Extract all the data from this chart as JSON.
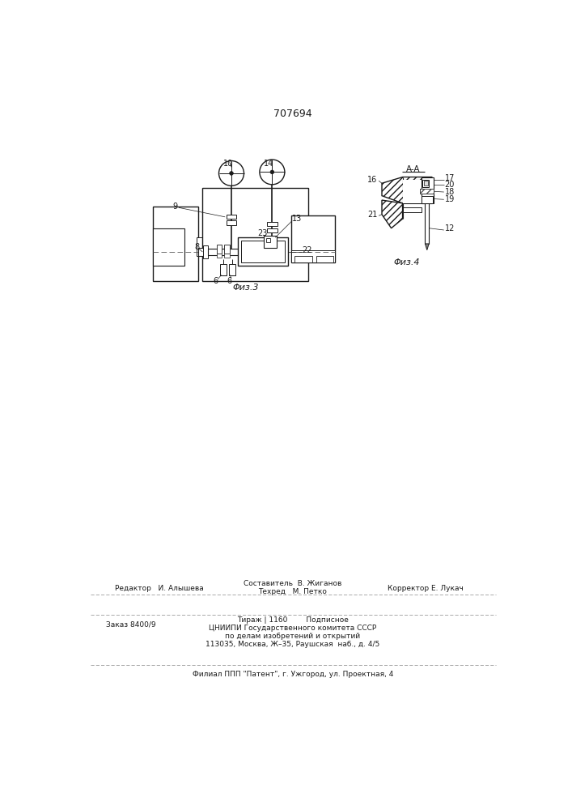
{
  "patent_number": "707694",
  "fig3_label": "Φиз.3",
  "fig4_label": "Φиз.4",
  "section_label": "A-A",
  "bg_color": "#f0ede8",
  "line_color": "#1a1a1a",
  "footer_line1_left": "Редактор   И. Алышева",
  "footer_line1_center_top": "Составитель  В. Жиганов",
  "footer_line1_center_bot": "Техред   М. Петко",
  "footer_line1_right": "Корректор Е. Лукач",
  "footer_line2_left": "Заказ 8400/9",
  "footer_tirazh": "Тираж | 1160",
  "footer_podpisnoe": "Подписное",
  "footer_cnipi1": "ЦНИИПИ Государственного комитета СССР",
  "footer_cnipi2": "по делам изобретений и открытий",
  "footer_cnipi3": "113035, Москва, Ж–35, Раушская  наб., д. 4/5",
  "footer_line3": "Филиал ППП \"Патент\", г. Ужгород, ул. Проектная, 4"
}
